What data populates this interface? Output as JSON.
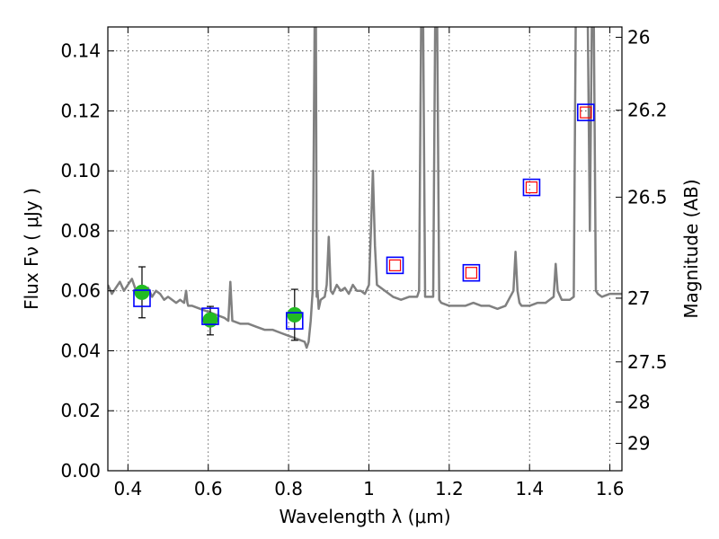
{
  "chart_data": {
    "type": "scatter",
    "xlabel": "Wavelength  λ (μm)",
    "ylabel": "Flux  Fν  ( μJy )",
    "ylabel_right": "Magnitude (AB)",
    "xlim": [
      0.35,
      1.63
    ],
    "ylim": [
      0.0,
      0.148
    ],
    "grid": true,
    "x_ticks": [
      {
        "value": 0.4,
        "label": "0.4"
      },
      {
        "value": 0.6,
        "label": "0.6"
      },
      {
        "value": 0.8,
        "label": "0.8"
      },
      {
        "value": 1.0,
        "label": "1"
      },
      {
        "value": 1.2,
        "label": "1.2"
      },
      {
        "value": 1.4,
        "label": "1.4"
      },
      {
        "value": 1.6,
        "label": "1.6"
      }
    ],
    "y_ticks": [
      {
        "value": 0.0,
        "label": "0.00"
      },
      {
        "value": 0.02,
        "label": "0.02"
      },
      {
        "value": 0.04,
        "label": "0.04"
      },
      {
        "value": 0.06,
        "label": "0.06"
      },
      {
        "value": 0.08,
        "label": "0.08"
      },
      {
        "value": 0.1,
        "label": "0.10"
      },
      {
        "value": 0.12,
        "label": "0.12"
      },
      {
        "value": 0.14,
        "label": "0.14"
      }
    ],
    "y_right_ticks": [
      {
        "mag": 26,
        "label": "26"
      },
      {
        "mag": 26.2,
        "label": "26.2"
      },
      {
        "mag": 26.5,
        "label": "26.5"
      },
      {
        "mag": 27,
        "label": "27"
      },
      {
        "mag": 27.5,
        "label": "27.5"
      },
      {
        "mag": 28,
        "label": "28"
      },
      {
        "mag": 29,
        "label": "29"
      }
    ],
    "series": [
      {
        "kind": "line",
        "color": "#808080",
        "x": [
          0.35,
          0.36,
          0.37,
          0.38,
          0.39,
          0.4,
          0.41,
          0.42,
          0.43,
          0.44,
          0.45,
          0.46,
          0.47,
          0.48,
          0.49,
          0.5,
          0.51,
          0.52,
          0.53,
          0.54,
          0.545,
          0.548,
          0.55,
          0.56,
          0.58,
          0.6,
          0.62,
          0.64,
          0.65,
          0.655,
          0.66,
          0.68,
          0.7,
          0.72,
          0.74,
          0.76,
          0.78,
          0.8,
          0.82,
          0.84,
          0.845,
          0.85,
          0.855,
          0.86,
          0.865,
          0.868,
          0.87,
          0.872,
          0.875,
          0.88,
          0.89,
          0.895,
          0.9,
          0.905,
          0.91,
          0.92,
          0.93,
          0.94,
          0.95,
          0.96,
          0.97,
          0.98,
          0.99,
          1.0,
          1.005,
          1.01,
          1.015,
          1.02,
          1.04,
          1.06,
          1.08,
          1.1,
          1.12,
          1.125,
          1.13,
          1.135,
          1.14,
          1.16,
          1.165,
          1.17,
          1.175,
          1.18,
          1.2,
          1.22,
          1.24,
          1.26,
          1.28,
          1.3,
          1.32,
          1.34,
          1.36,
          1.365,
          1.37,
          1.375,
          1.38,
          1.4,
          1.42,
          1.44,
          1.46,
          1.465,
          1.47,
          1.48,
          1.5,
          1.51,
          1.515,
          1.52,
          1.53,
          1.54,
          1.545,
          1.55,
          1.555,
          1.56,
          1.565,
          1.57,
          1.58,
          1.6,
          1.63
        ],
        "y": [
          0.062,
          0.059,
          0.061,
          0.063,
          0.06,
          0.062,
          0.064,
          0.06,
          0.058,
          0.06,
          0.061,
          0.058,
          0.06,
          0.059,
          0.057,
          0.058,
          0.057,
          0.056,
          0.057,
          0.056,
          0.06,
          0.056,
          0.055,
          0.055,
          0.054,
          0.053,
          0.052,
          0.051,
          0.05,
          0.063,
          0.05,
          0.049,
          0.049,
          0.048,
          0.047,
          0.047,
          0.046,
          0.045,
          0.044,
          0.043,
          0.041,
          0.043,
          0.05,
          0.06,
          0.15,
          0.15,
          0.058,
          0.06,
          0.054,
          0.057,
          0.058,
          0.062,
          0.078,
          0.06,
          0.059,
          0.062,
          0.06,
          0.061,
          0.059,
          0.062,
          0.06,
          0.06,
          0.059,
          0.062,
          0.08,
          0.1,
          0.075,
          0.062,
          0.06,
          0.058,
          0.057,
          0.058,
          0.058,
          0.06,
          0.15,
          0.15,
          0.058,
          0.058,
          0.15,
          0.15,
          0.057,
          0.056,
          0.055,
          0.055,
          0.055,
          0.056,
          0.055,
          0.055,
          0.054,
          0.055,
          0.06,
          0.073,
          0.06,
          0.056,
          0.055,
          0.055,
          0.056,
          0.056,
          0.058,
          0.069,
          0.06,
          0.057,
          0.057,
          0.058,
          0.15,
          0.15,
          0.15,
          0.15,
          0.15,
          0.08,
          0.15,
          0.15,
          0.06,
          0.059,
          0.058,
          0.059,
          0.059
        ]
      },
      {
        "kind": "points",
        "name": "",
        "marker": "circle",
        "color": "#22bb22",
        "x": [
          0.435,
          0.605,
          0.815
        ],
        "y": [
          0.0595,
          0.0503,
          0.052
        ],
        "yerr_low": [
          0.0085,
          0.005,
          0.0085
        ],
        "yerr_high": [
          0.0085,
          0.0045,
          0.0085
        ]
      },
      {
        "kind": "points",
        "marker": "square-open",
        "color": "#0000ff",
        "x": [
          0.435,
          0.605,
          0.815,
          1.065,
          1.255,
          1.405,
          1.54
        ],
        "y": [
          0.0575,
          0.0515,
          0.05,
          0.0685,
          0.066,
          0.0945,
          0.1195
        ]
      },
      {
        "kind": "points",
        "marker": "square-open-small",
        "color": "#ff0000",
        "x": [
          1.065,
          1.255,
          1.405,
          1.54
        ],
        "y": [
          0.0685,
          0.066,
          0.0945,
          0.1195
        ]
      }
    ]
  }
}
